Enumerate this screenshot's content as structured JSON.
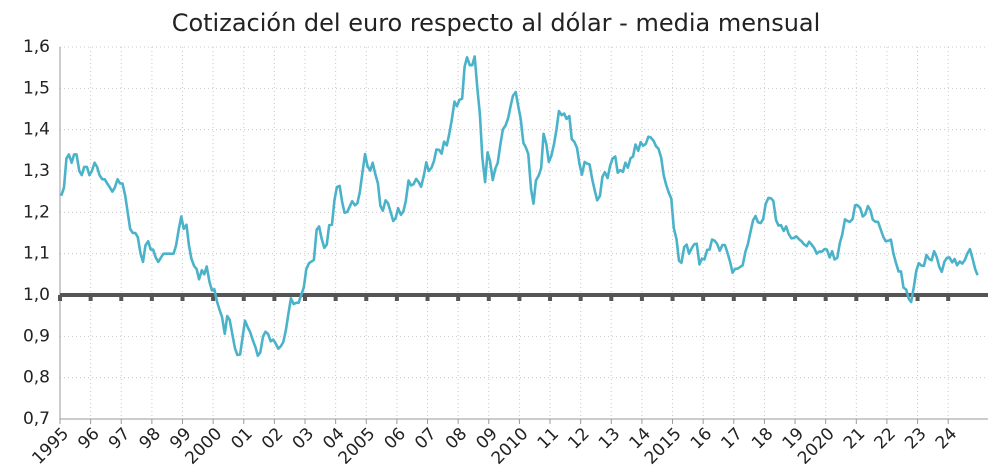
{
  "chart_data": {
    "type": "line",
    "title": "Cotización del euro respecto al dólar - media mensual",
    "xlim": [
      1995,
      2025.3
    ],
    "ylim": [
      0.7,
      1.6
    ],
    "xticks": [
      {
        "value": 1995,
        "label": "1995"
      },
      {
        "value": 1996,
        "label": "96"
      },
      {
        "value": 1997,
        "label": "97"
      },
      {
        "value": 1998,
        "label": "98"
      },
      {
        "value": 1999,
        "label": "99"
      },
      {
        "value": 2000,
        "label": "2000"
      },
      {
        "value": 2001,
        "label": "01"
      },
      {
        "value": 2002,
        "label": "02"
      },
      {
        "value": 2003,
        "label": "03"
      },
      {
        "value": 2004,
        "label": "04"
      },
      {
        "value": 2005,
        "label": "2005"
      },
      {
        "value": 2006,
        "label": "06"
      },
      {
        "value": 2007,
        "label": "07"
      },
      {
        "value": 2008,
        "label": "08"
      },
      {
        "value": 2009,
        "label": "09"
      },
      {
        "value": 2010,
        "label": "2010"
      },
      {
        "value": 2011,
        "label": "11"
      },
      {
        "value": 2012,
        "label": "12"
      },
      {
        "value": 2013,
        "label": "13"
      },
      {
        "value": 2014,
        "label": "14"
      },
      {
        "value": 2015,
        "label": "2015"
      },
      {
        "value": 2016,
        "label": "16"
      },
      {
        "value": 2017,
        "label": "17"
      },
      {
        "value": 2018,
        "label": "18"
      },
      {
        "value": 2019,
        "label": "19"
      },
      {
        "value": 2020,
        "label": "2020"
      },
      {
        "value": 2021,
        "label": "21"
      },
      {
        "value": 2022,
        "label": "22"
      },
      {
        "value": 2023,
        "label": "23"
      },
      {
        "value": 2024,
        "label": "24"
      }
    ],
    "yticks": [
      {
        "value": 0.7,
        "label": "0,7"
      },
      {
        "value": 0.8,
        "label": "0,8"
      },
      {
        "value": 0.9,
        "label": "0,9"
      },
      {
        "value": 1.0,
        "label": "1,0"
      },
      {
        "value": 1.1,
        "label": "1,1"
      },
      {
        "value": 1.2,
        "label": "1,2"
      },
      {
        "value": 1.3,
        "label": "1,3"
      },
      {
        "value": 1.4,
        "label": "1,4"
      },
      {
        "value": 1.5,
        "label": "1,5"
      },
      {
        "value": 1.6,
        "label": "1,6"
      }
    ],
    "grid": true,
    "hline": {
      "value": 1.0,
      "color": "#555555"
    },
    "x": [
      1995.04,
      1995.13,
      1995.21,
      1995.29,
      1995.38,
      1995.46,
      1995.54,
      1995.63,
      1995.71,
      1995.79,
      1995.88,
      1995.96,
      1996.04,
      1996.13,
      1996.21,
      1996.29,
      1996.38,
      1996.46,
      1996.54,
      1996.63,
      1996.71,
      1996.79,
      1996.88,
      1996.96,
      1997.04,
      1997.13,
      1997.21,
      1997.29,
      1997.38,
      1997.46,
      1997.54,
      1997.63,
      1997.71,
      1997.79,
      1997.88,
      1997.96,
      1998.04,
      1998.13,
      1998.21,
      1998.29,
      1998.38,
      1998.46,
      1998.54,
      1998.63,
      1998.71,
      1998.79,
      1998.88,
      1998.96,
      1999.04,
      1999.13,
      1999.21,
      1999.29,
      1999.38,
      1999.46,
      1999.54,
      1999.63,
      1999.71,
      1999.79,
      1999.88,
      1999.96,
      2000.04,
      2000.13,
      2000.21,
      2000.29,
      2000.38,
      2000.46,
      2000.54,
      2000.63,
      2000.71,
      2000.79,
      2000.88,
      2000.96,
      2001.04,
      2001.13,
      2001.21,
      2001.29,
      2001.38,
      2001.46,
      2001.54,
      2001.63,
      2001.71,
      2001.79,
      2001.88,
      2001.96,
      2002.04,
      2002.13,
      2002.21,
      2002.29,
      2002.38,
      2002.46,
      2002.54,
      2002.63,
      2002.71,
      2002.79,
      2002.88,
      2002.96,
      2003.04,
      2003.13,
      2003.21,
      2003.29,
      2003.38,
      2003.46,
      2003.54,
      2003.63,
      2003.71,
      2003.79,
      2003.88,
      2003.96,
      2004.04,
      2004.13,
      2004.21,
      2004.29,
      2004.38,
      2004.46,
      2004.54,
      2004.63,
      2004.71,
      2004.79,
      2004.88,
      2004.96,
      2005.04,
      2005.13,
      2005.21,
      2005.29,
      2005.38,
      2005.46,
      2005.54,
      2005.63,
      2005.71,
      2005.79,
      2005.88,
      2005.96,
      2006.04,
      2006.13,
      2006.21,
      2006.29,
      2006.38,
      2006.46,
      2006.54,
      2006.63,
      2006.71,
      2006.79,
      2006.88,
      2006.96,
      2007.04,
      2007.13,
      2007.21,
      2007.29,
      2007.38,
      2007.46,
      2007.54,
      2007.63,
      2007.71,
      2007.79,
      2007.88,
      2007.96,
      2008.04,
      2008.13,
      2008.21,
      2008.29,
      2008.38,
      2008.46,
      2008.54,
      2008.63,
      2008.71,
      2008.79,
      2008.88,
      2008.96,
      2009.04,
      2009.13,
      2009.21,
      2009.29,
      2009.38,
      2009.46,
      2009.54,
      2009.63,
      2009.71,
      2009.79,
      2009.88,
      2009.96,
      2010.04,
      2010.13,
      2010.21,
      2010.29,
      2010.38,
      2010.46,
      2010.54,
      2010.63,
      2010.71,
      2010.79,
      2010.88,
      2010.96,
      2011.04,
      2011.13,
      2011.21,
      2011.29,
      2011.38,
      2011.46,
      2011.54,
      2011.63,
      2011.71,
      2011.79,
      2011.88,
      2011.96,
      2012.04,
      2012.13,
      2012.21,
      2012.29,
      2012.38,
      2012.46,
      2012.54,
      2012.63,
      2012.71,
      2012.79,
      2012.88,
      2012.96,
      2013.04,
      2013.13,
      2013.21,
      2013.29,
      2013.38,
      2013.46,
      2013.54,
      2013.63,
      2013.71,
      2013.79,
      2013.88,
      2013.96,
      2014.04,
      2014.13,
      2014.21,
      2014.29,
      2014.38,
      2014.46,
      2014.54,
      2014.63,
      2014.71,
      2014.79,
      2014.88,
      2014.96,
      2015.04,
      2015.13,
      2015.21,
      2015.29,
      2015.38,
      2015.46,
      2015.54,
      2015.63,
      2015.71,
      2015.79,
      2015.88,
      2015.96,
      2016.04,
      2016.13,
      2016.21,
      2016.29,
      2016.38,
      2016.46,
      2016.54,
      2016.63,
      2016.71,
      2016.79,
      2016.88,
      2016.96,
      2017.04,
      2017.13,
      2017.21,
      2017.29,
      2017.38,
      2017.46,
      2017.54,
      2017.63,
      2017.71,
      2017.79,
      2017.88,
      2017.96,
      2018.04,
      2018.13,
      2018.21,
      2018.29,
      2018.38,
      2018.46,
      2018.54,
      2018.63,
      2018.71,
      2018.79,
      2018.88,
      2018.96,
      2019.04,
      2019.13,
      2019.21,
      2019.29,
      2019.38,
      2019.46,
      2019.54,
      2019.63,
      2019.71,
      2019.79,
      2019.88,
      2019.96,
      2020.04,
      2020.13,
      2020.21,
      2020.29,
      2020.38,
      2020.46,
      2020.54,
      2020.63,
      2020.71,
      2020.79,
      2020.88,
      2020.96,
      2021.04,
      2021.13,
      2021.21,
      2021.29,
      2021.38,
      2021.46,
      2021.54,
      2021.63,
      2021.71,
      2021.79,
      2021.88,
      2021.96,
      2022.04,
      2022.13,
      2022.21,
      2022.29,
      2022.38,
      2022.46,
      2022.54,
      2022.63,
      2022.71,
      2022.79,
      2022.88,
      2022.96,
      2023.04,
      2023.13,
      2023.21,
      2023.29,
      2023.38,
      2023.46,
      2023.54,
      2023.63,
      2023.71,
      2023.79,
      2023.88,
      2023.96,
      2024.04,
      2024.13,
      2024.21,
      2024.29,
      2024.38,
      2024.46,
      2024.54,
      2024.63,
      2024.71,
      2024.79,
      2024.88,
      2024.96
    ],
    "series": [
      {
        "color": "#4bb3c9",
        "values": [
          1.24,
          1.26,
          1.33,
          1.34,
          1.32,
          1.34,
          1.34,
          1.3,
          1.29,
          1.31,
          1.31,
          1.29,
          1.3,
          1.32,
          1.31,
          1.29,
          1.28,
          1.28,
          1.27,
          1.26,
          1.25,
          1.26,
          1.28,
          1.27,
          1.27,
          1.24,
          1.2,
          1.16,
          1.15,
          1.15,
          1.14,
          1.1,
          1.08,
          1.12,
          1.13,
          1.11,
          1.11,
          1.09,
          1.08,
          1.09,
          1.1,
          1.1,
          1.1,
          1.1,
          1.1,
          1.12,
          1.16,
          1.19,
          1.16,
          1.17,
          1.12,
          1.088,
          1.07,
          1.063,
          1.038,
          1.06,
          1.05,
          1.069,
          1.032,
          1.011,
          1.014,
          0.983,
          0.964,
          0.947,
          0.906,
          0.949,
          0.94,
          0.904,
          0.872,
          0.855,
          0.856,
          0.897,
          0.938,
          0.922,
          0.91,
          0.892,
          0.874,
          0.853,
          0.861,
          0.9,
          0.911,
          0.906,
          0.888,
          0.892,
          0.883,
          0.87,
          0.876,
          0.886,
          0.917,
          0.956,
          0.992,
          0.978,
          0.981,
          0.981,
          1.001,
          1.018,
          1.062,
          1.077,
          1.081,
          1.085,
          1.158,
          1.166,
          1.137,
          1.114,
          1.122,
          1.169,
          1.17,
          1.229,
          1.261,
          1.264,
          1.226,
          1.199,
          1.201,
          1.214,
          1.227,
          1.217,
          1.222,
          1.249,
          1.299,
          1.341,
          1.312,
          1.301,
          1.32,
          1.294,
          1.27,
          1.216,
          1.204,
          1.229,
          1.222,
          1.202,
          1.179,
          1.186,
          1.21,
          1.194,
          1.202,
          1.227,
          1.277,
          1.265,
          1.268,
          1.281,
          1.273,
          1.262,
          1.289,
          1.321,
          1.3,
          1.308,
          1.324,
          1.352,
          1.351,
          1.342,
          1.371,
          1.362,
          1.39,
          1.423,
          1.468,
          1.457,
          1.472,
          1.475,
          1.552,
          1.575,
          1.556,
          1.556,
          1.577,
          1.497,
          1.437,
          1.332,
          1.273,
          1.345,
          1.324,
          1.278,
          1.305,
          1.319,
          1.365,
          1.401,
          1.409,
          1.427,
          1.456,
          1.482,
          1.491,
          1.458,
          1.427,
          1.368,
          1.357,
          1.341,
          1.256,
          1.221,
          1.277,
          1.289,
          1.307,
          1.39,
          1.365,
          1.322,
          1.336,
          1.365,
          1.4,
          1.445,
          1.435,
          1.439,
          1.426,
          1.433,
          1.377,
          1.371,
          1.356,
          1.318,
          1.291,
          1.322,
          1.318,
          1.316,
          1.279,
          1.253,
          1.229,
          1.24,
          1.286,
          1.297,
          1.283,
          1.312,
          1.33,
          1.335,
          1.296,
          1.302,
          1.298,
          1.32,
          1.308,
          1.331,
          1.335,
          1.364,
          1.349,
          1.37,
          1.361,
          1.366,
          1.383,
          1.381,
          1.373,
          1.36,
          1.354,
          1.332,
          1.29,
          1.267,
          1.247,
          1.233,
          1.162,
          1.135,
          1.083,
          1.078,
          1.116,
          1.122,
          1.1,
          1.114,
          1.123,
          1.124,
          1.074,
          1.088,
          1.086,
          1.109,
          1.11,
          1.134,
          1.131,
          1.123,
          1.107,
          1.121,
          1.121,
          1.103,
          1.08,
          1.054,
          1.063,
          1.064,
          1.068,
          1.072,
          1.105,
          1.123,
          1.151,
          1.181,
          1.191,
          1.176,
          1.174,
          1.184,
          1.22,
          1.235,
          1.234,
          1.228,
          1.181,
          1.168,
          1.169,
          1.155,
          1.166,
          1.148,
          1.137,
          1.138,
          1.142,
          1.135,
          1.13,
          1.123,
          1.118,
          1.129,
          1.122,
          1.113,
          1.1,
          1.105,
          1.105,
          1.111,
          1.11,
          1.091,
          1.106,
          1.086,
          1.09,
          1.125,
          1.146,
          1.183,
          1.179,
          1.177,
          1.184,
          1.217,
          1.217,
          1.21,
          1.19,
          1.195,
          1.215,
          1.205,
          1.182,
          1.177,
          1.177,
          1.16,
          1.141,
          1.13,
          1.131,
          1.134,
          1.101,
          1.079,
          1.057,
          1.057,
          1.018,
          1.013,
          0.991,
          0.983,
          1.02,
          1.059,
          1.077,
          1.071,
          1.071,
          1.097,
          1.087,
          1.084,
          1.106,
          1.091,
          1.068,
          1.056,
          1.081,
          1.09,
          1.091,
          1.079,
          1.087,
          1.072,
          1.081,
          1.076,
          1.084,
          1.101,
          1.111,
          1.09,
          1.063,
          1.048
        ]
      }
    ]
  }
}
